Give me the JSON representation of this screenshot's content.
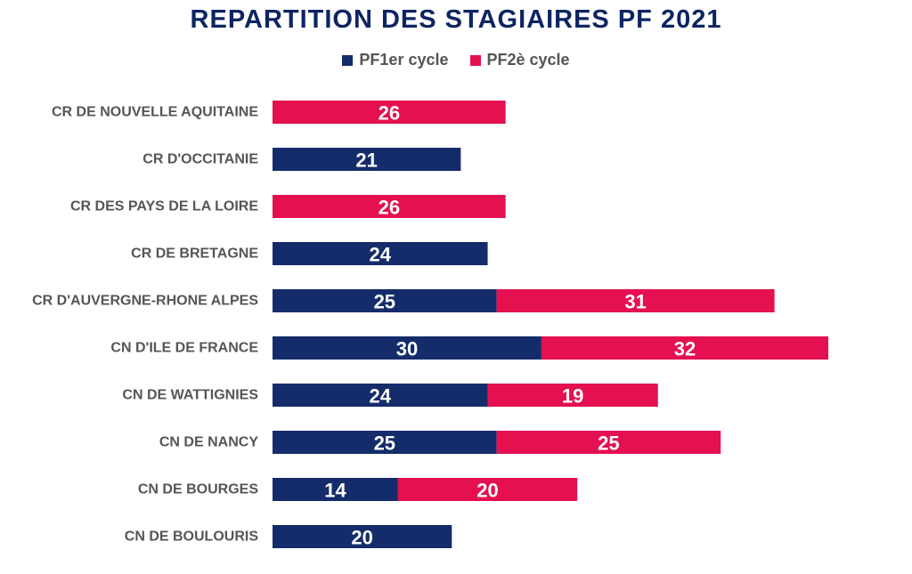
{
  "chart_data": {
    "type": "bar",
    "orientation": "horizontal",
    "stacked": true,
    "title": "REPARTITION DES STAGIAIRES PF 2021",
    "legend_position": "top",
    "grid": false,
    "categories": [
      "CR DE NOUVELLE AQUITAINE",
      "CR D'OCCITANIE",
      "CR DES PAYS DE LA LOIRE",
      "CR DE BRETAGNE",
      "CR D'AUVERGNE-RHONE ALPES",
      "CN D'ILE DE FRANCE",
      "CN DE WATTIGNIES",
      "CN DE NANCY",
      "CN DE BOURGES",
      "CN DE BOULOURIS"
    ],
    "series": [
      {
        "name": "PF1er cycle",
        "color": "#152c6b",
        "values": [
          null,
          21,
          null,
          24,
          25,
          30,
          24,
          25,
          14,
          20
        ]
      },
      {
        "name": "PF2è cycle",
        "color": "#e4104f",
        "values": [
          26,
          null,
          26,
          null,
          31,
          32,
          19,
          25,
          20,
          null
        ]
      }
    ],
    "xlim": [
      0,
      62
    ]
  }
}
